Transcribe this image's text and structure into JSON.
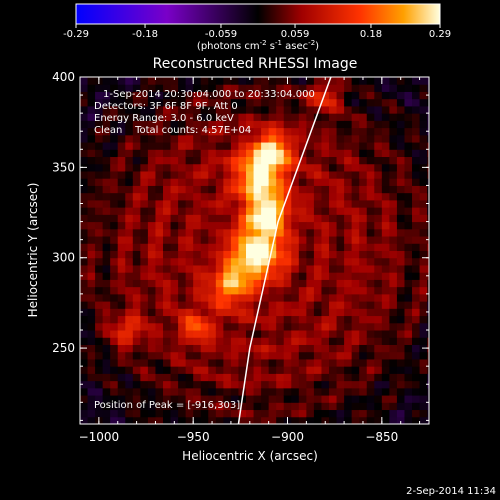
{
  "chart_data": {
    "type": "heatmap",
    "title": "Reconstructed RHESSI Image",
    "xlabel": "Heliocentric X (arcsec)",
    "ylabel": "Heliocentric Y (arcsec)",
    "xlim": [
      -1010,
      -825
    ],
    "ylim": [
      208,
      400
    ],
    "x_ticks": [
      -1000,
      -950,
      -900,
      -850
    ],
    "x_tick_labels": [
      "−1000",
      "−950",
      "−900",
      "−850"
    ],
    "y_ticks": [
      250,
      300,
      350,
      400
    ],
    "y_tick_labels": [
      "250",
      "300",
      "350",
      "400"
    ],
    "colorbar": {
      "min": -0.29,
      "max": 0.29,
      "ticks": [
        -0.29,
        -0.18,
        -0.059,
        0.059,
        0.18,
        0.29
      ],
      "tick_labels": [
        "-0.29",
        "-0.18",
        "-0.059",
        "0.059",
        "0.18",
        "0.29"
      ],
      "label_main": "(photons cm",
      "label_sup1": "-2",
      "label_mid": " s",
      "label_sup2": "-1",
      "label_tail": " asec",
      "label_sup3": "-2",
      "label_close": ")"
    },
    "info_lines": [
      "1-Sep-2014 20:30:04.000 to 20:33:04.000",
      "Detectors: 3F 6F 8F 9F, Att 0",
      "Energy Range: 3.0 - 6.0 keV",
      "Clean    Total counts: 4.57E+04"
    ],
    "peak_label": "Position of Peak = [-916,303]",
    "peak": {
      "x": -916,
      "y": 303
    },
    "sources": [
      {
        "x": -916,
        "y": 303,
        "amp": 0.29,
        "sigma": 9
      },
      {
        "x": -911,
        "y": 325,
        "amp": 0.24,
        "sigma": 8
      },
      {
        "x": -915,
        "y": 346,
        "amp": 0.23,
        "sigma": 9
      },
      {
        "x": -908,
        "y": 360,
        "amp": 0.2,
        "sigma": 7
      },
      {
        "x": -930,
        "y": 285,
        "amp": 0.18,
        "sigma": 8
      },
      {
        "x": -985,
        "y": 260,
        "amp": 0.12,
        "sigma": 6
      },
      {
        "x": -948,
        "y": 262,
        "amp": 0.12,
        "sigma": 6
      },
      {
        "x": -880,
        "y": 390,
        "amp": 0.12,
        "sigma": 6
      }
    ],
    "limb_points": [
      [
        -877,
        400
      ],
      [
        -905,
        320
      ],
      [
        -920,
        250
      ],
      [
        -926,
        208
      ]
    ],
    "footer_date": "2-Sep-2014 11:34"
  }
}
